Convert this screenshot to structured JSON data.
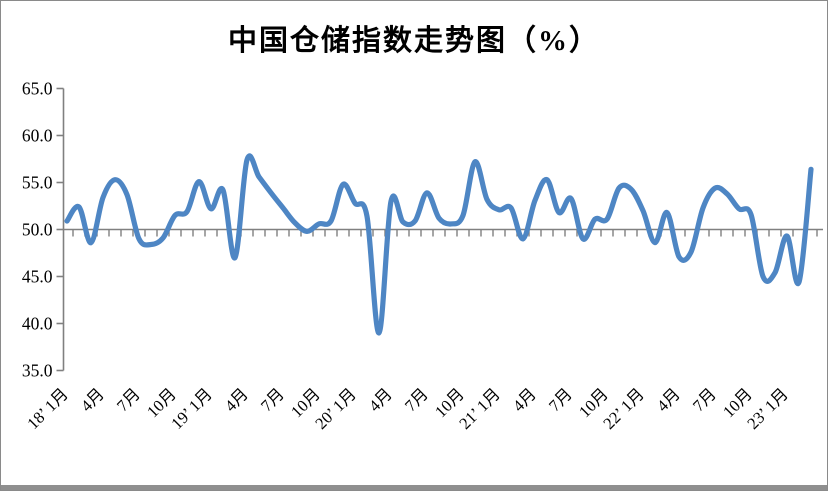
{
  "window": {
    "frame_border_color": "#8a8a8a",
    "bottom_bar_color": "#8f8f8f",
    "background_color": "#ffffff"
  },
  "chart": {
    "title": "中国仓储指数走势图（%）"
  },
  "chart_data": {
    "type": "line",
    "title": "中国仓储指数走势图（%）",
    "series_name": "中国仓储指数",
    "unit": "%",
    "x": [
      "2018-01",
      "2018-02",
      "2018-03",
      "2018-04",
      "2018-05",
      "2018-06",
      "2018-07",
      "2018-08",
      "2018-09",
      "2018-10",
      "2018-11",
      "2018-12",
      "2019-01",
      "2019-02",
      "2019-03",
      "2019-04",
      "2019-05",
      "2019-06",
      "2019-07",
      "2019-08",
      "2019-09",
      "2019-10",
      "2019-11",
      "2019-12",
      "2020-01",
      "2020-02",
      "2020-03",
      "2020-04",
      "2020-05",
      "2020-06",
      "2020-07",
      "2020-08",
      "2020-09",
      "2020-10",
      "2020-11",
      "2020-12",
      "2021-01",
      "2021-02",
      "2021-03",
      "2021-04",
      "2021-05",
      "2021-06",
      "2021-07",
      "2021-08",
      "2021-09",
      "2021-10",
      "2021-11",
      "2021-12",
      "2022-01",
      "2022-02",
      "2022-03",
      "2022-04",
      "2022-05",
      "2022-06",
      "2022-07",
      "2022-08",
      "2022-09",
      "2022-10",
      "2022-11",
      "2022-12",
      "2023-01",
      "2023-02",
      "2023-03"
    ],
    "values": [
      50.9,
      52.4,
      48.6,
      53.4,
      55.3,
      53.7,
      49.0,
      48.4,
      49.1,
      51.5,
      51.9,
      55.1,
      52.2,
      54.2,
      47.0,
      57.4,
      55.6,
      53.9,
      52.3,
      50.7,
      49.8,
      50.6,
      50.9,
      54.8,
      52.8,
      51.4,
      39.0,
      53.0,
      50.8,
      50.9,
      53.9,
      51.2,
      50.6,
      51.5,
      57.2,
      53.2,
      52.1,
      52.3,
      49.0,
      53.1,
      55.3,
      51.8,
      53.3,
      49.0,
      51.1,
      51.1,
      54.4,
      54.3,
      52.0,
      48.6,
      51.8,
      47.1,
      47.6,
      52.3,
      54.4,
      53.8,
      52.2,
      51.6,
      45.0,
      45.4,
      49.3,
      44.4,
      56.4
    ],
    "x_tick_labels": [
      "18’ 1月",
      "4月",
      "7月",
      "10月",
      "19’ 1月",
      "4月",
      "7月",
      "10月",
      "20’ 1月",
      "4月",
      "7月",
      "10月",
      "21’ 1月",
      "4月",
      "7月",
      "10月",
      "22’ 1月",
      "4月",
      "7月",
      "10月",
      "23’ 1月"
    ],
    "x_tick_label_interval_months": 3,
    "y_ticks": [
      65.0,
      60.0,
      55.0,
      50.0,
      45.0,
      40.0,
      35.0
    ],
    "ylim": [
      35.0,
      65.0
    ],
    "xlabel": "",
    "ylabel": "",
    "category_axis_crosses_at": 50.0,
    "grid": false,
    "legend_position": "none",
    "line_color": "#4e86c4",
    "axis_color": "#808080",
    "label_color": "#000000"
  }
}
